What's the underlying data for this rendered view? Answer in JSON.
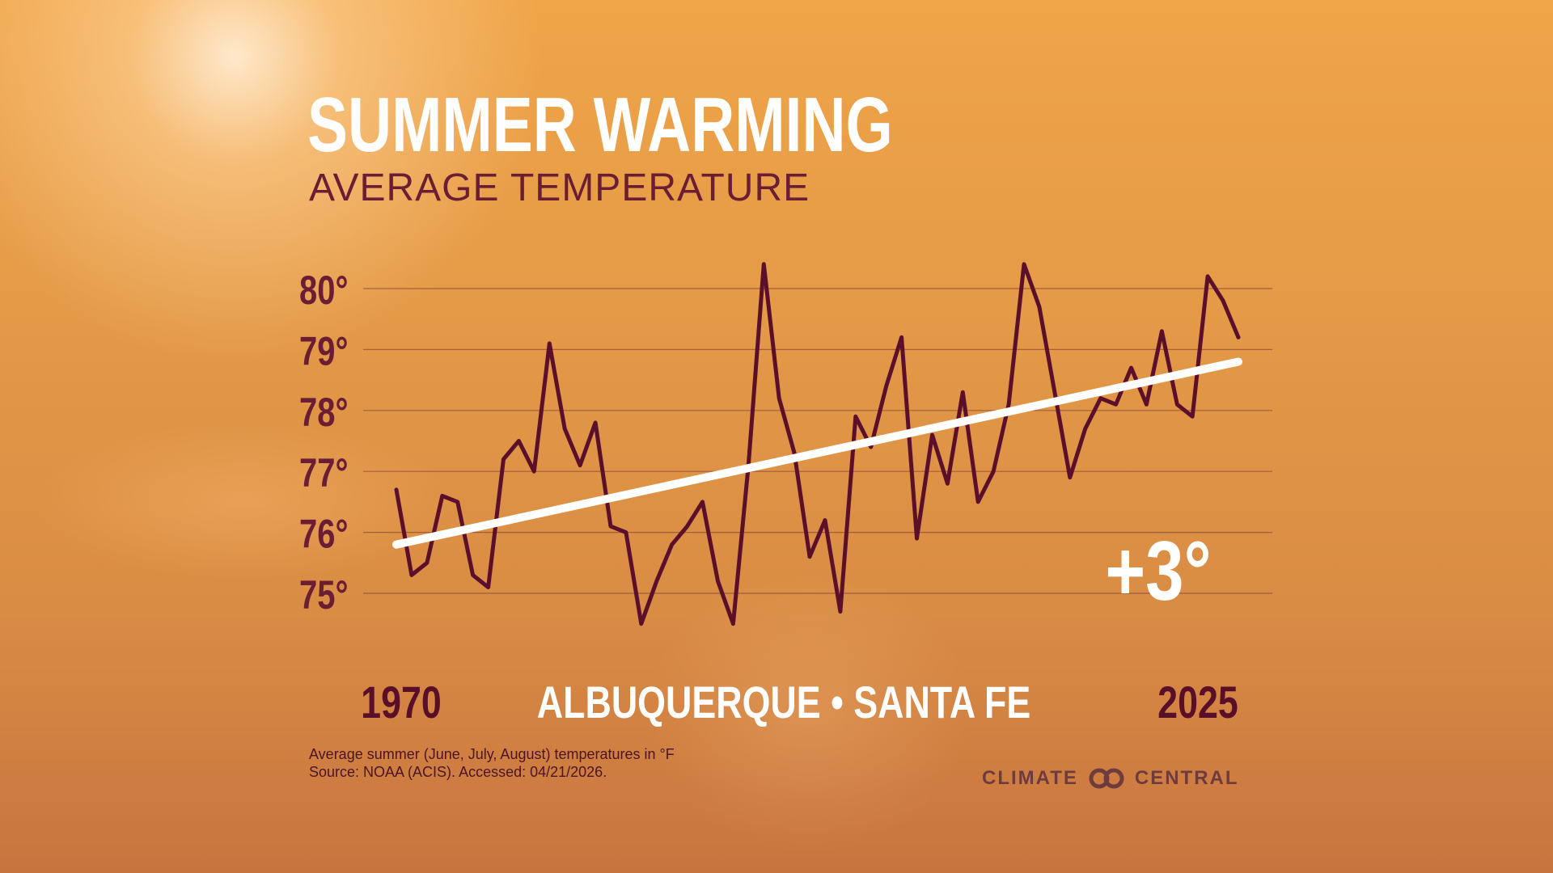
{
  "header": {
    "title": "SUMMER WARMING",
    "subtitle": "AVERAGE TEMPERATURE"
  },
  "footer": {
    "note_line1": "Average summer (June, July, August) temperatures in °F",
    "note_line2": "Source: NOAA (ACIS). Accessed: 04/21/2026.",
    "logo_left": "CLIMATE",
    "logo_right": "CENTRAL"
  },
  "colors": {
    "series_line": "#5c0f2a",
    "trend_line": "#ffffff",
    "tick_label": "#6b1e33",
    "gridline": "#7a3b33"
  },
  "chart_data": {
    "type": "line",
    "title": "SUMMER WARMING",
    "subtitle": "AVERAGE TEMPERATURE",
    "location_label": "ALBUQUERQUE • SANTA FE",
    "change_label": "+3°",
    "x_start_label": "1970",
    "x_end_label": "2025",
    "xlim": [
      1970,
      2025
    ],
    "ylim": [
      74.5,
      80.5
    ],
    "y_ticks": [
      75,
      76,
      77,
      78,
      79,
      80
    ],
    "y_tick_labels": [
      "75°",
      "76°",
      "77°",
      "78°",
      "79°",
      "80°"
    ],
    "grid": true,
    "unit": "°F",
    "x": [
      1970,
      1971,
      1972,
      1973,
      1974,
      1975,
      1976,
      1977,
      1978,
      1979,
      1980,
      1981,
      1982,
      1983,
      1984,
      1985,
      1986,
      1987,
      1988,
      1989,
      1990,
      1991,
      1992,
      1993,
      1994,
      1995,
      1996,
      1997,
      1998,
      1999,
      2000,
      2001,
      2002,
      2003,
      2004,
      2005,
      2006,
      2007,
      2008,
      2009,
      2010,
      2011,
      2012,
      2013,
      2014,
      2015,
      2016,
      2017,
      2018,
      2019,
      2020,
      2021,
      2022,
      2023,
      2024,
      2025
    ],
    "series": [
      {
        "values": [
          76.7,
          75.3,
          75.5,
          76.6,
          76.5,
          75.3,
          75.1,
          77.2,
          77.5,
          77.0,
          79.1,
          77.7,
          77.1,
          77.8,
          76.1,
          76.0,
          74.5,
          75.2,
          75.8,
          76.1,
          76.5,
          75.2,
          74.5,
          77.1,
          80.4,
          78.2,
          77.3,
          75.6,
          76.2,
          74.7,
          77.9,
          77.4,
          78.4,
          79.2,
          75.9,
          77.6,
          76.8,
          78.3,
          76.5,
          77.0,
          78.1,
          80.4,
          79.7,
          78.3,
          76.9,
          77.7,
          78.2,
          78.1,
          78.7,
          78.1,
          79.3,
          78.1,
          77.9,
          80.2,
          79.8,
          79.2
        ]
      }
    ],
    "trend": {
      "x": [
        1970,
        2025
      ],
      "y": [
        75.8,
        78.8
      ]
    }
  }
}
